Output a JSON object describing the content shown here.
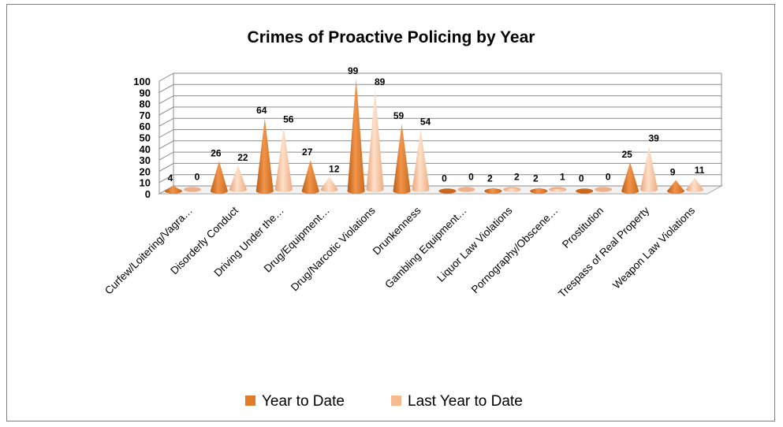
{
  "chart_data": {
    "type": "bar",
    "title": "Crimes of Proactive Policing by Year",
    "xlabel": "",
    "ylabel": "",
    "ylim": [
      0,
      100
    ],
    "yticks": [
      "0",
      "10",
      "20",
      "30",
      "40",
      "50",
      "60",
      "70",
      "80",
      "90",
      "100"
    ],
    "categories": [
      "Curfew/Loitering/Vagra…",
      "Disorderly Conduct",
      "Driving Under the…",
      "Drug/Equipment…",
      "Drug/Narcotic Violations",
      "Drunkenness",
      "Gambling Equipment…",
      "Liquor Law Violations",
      "Pornography/Obscene…",
      "Prostitution",
      "Trespass of Real Property",
      "Weapon Law Violations"
    ],
    "series": [
      {
        "name": "Year to Date",
        "values": [
          4,
          26,
          64,
          27,
          99,
          59,
          0,
          2,
          2,
          0,
          25,
          9
        ],
        "color": "#e07b28"
      },
      {
        "name": "Last Year to Date",
        "values": [
          0,
          22,
          56,
          12,
          89,
          54,
          0,
          2,
          1,
          0,
          39,
          11
        ],
        "color": "#f7b98e"
      }
    ],
    "grid": true,
    "legend_position": "bottom",
    "shape": "3d-cone"
  }
}
